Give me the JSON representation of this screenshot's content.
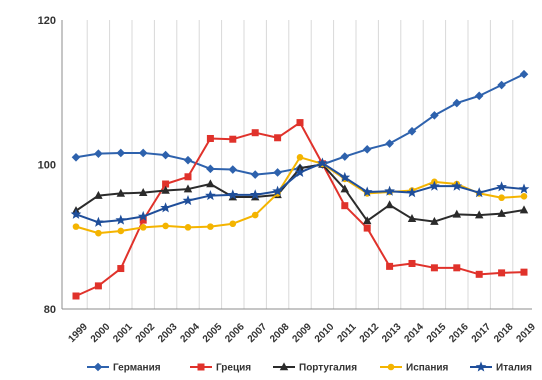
{
  "chart_data": {
    "type": "line",
    "title": "",
    "xlabel": "",
    "ylabel": "",
    "x": [
      "1999",
      "2000",
      "2001",
      "2002",
      "2003",
      "2004",
      "2005",
      "2006",
      "2007",
      "2008",
      "2009",
      "2010",
      "2011",
      "2012",
      "2013",
      "2014",
      "2015",
      "2016",
      "2017",
      "2018",
      "2019"
    ],
    "yticks": [
      "80",
      "100",
      "120"
    ],
    "ytick_values": [
      80,
      100,
      120
    ],
    "ylim": [
      80,
      120
    ],
    "grid": "vertical",
    "legend_position": "bottom",
    "series": [
      {
        "name": "Германия",
        "color": "#2e62ad",
        "marker": "diamond",
        "values": [
          101.0,
          101.5,
          101.6,
          101.6,
          101.3,
          100.6,
          99.4,
          99.3,
          98.6,
          98.9,
          99.5,
          100.0,
          101.1,
          102.1,
          102.9,
          104.6,
          106.8,
          108.5,
          109.5,
          111.0,
          112.5
        ]
      },
      {
        "name": "Греция",
        "color": "#e0322b",
        "marker": "square",
        "values": [
          81.8,
          83.2,
          85.6,
          92.3,
          97.3,
          98.3,
          103.6,
          103.5,
          104.4,
          103.7,
          105.8,
          100.1,
          94.3,
          91.2,
          85.9,
          86.3,
          85.7,
          85.7,
          84.8,
          85.0,
          85.1
        ]
      },
      {
        "name": "Португалия",
        "color": "#2b2b2b",
        "marker": "triangle",
        "values": [
          93.6,
          95.7,
          96.0,
          96.1,
          96.4,
          96.6,
          97.3,
          95.5,
          95.5,
          95.8,
          99.5,
          100.0,
          96.6,
          92.2,
          94.4,
          92.5,
          92.1,
          93.1,
          93.0,
          93.2,
          93.7
        ]
      },
      {
        "name": "Испания",
        "color": "#f4b400",
        "marker": "circle",
        "values": [
          91.4,
          90.5,
          90.8,
          91.3,
          91.5,
          91.3,
          91.4,
          91.8,
          93.0,
          96.0,
          101.0,
          100.1,
          98.0,
          96.0,
          96.2,
          96.4,
          97.6,
          97.3,
          96.0,
          95.4,
          95.6
        ]
      },
      {
        "name": "Италия",
        "color": "#1f4e9a",
        "marker": "star",
        "values": [
          93.1,
          92.0,
          92.3,
          92.8,
          94.0,
          95.0,
          95.7,
          95.8,
          95.8,
          96.3,
          98.9,
          100.2,
          98.2,
          96.2,
          96.3,
          96.1,
          97.0,
          97.0,
          96.1,
          96.9,
          96.6
        ]
      }
    ]
  }
}
